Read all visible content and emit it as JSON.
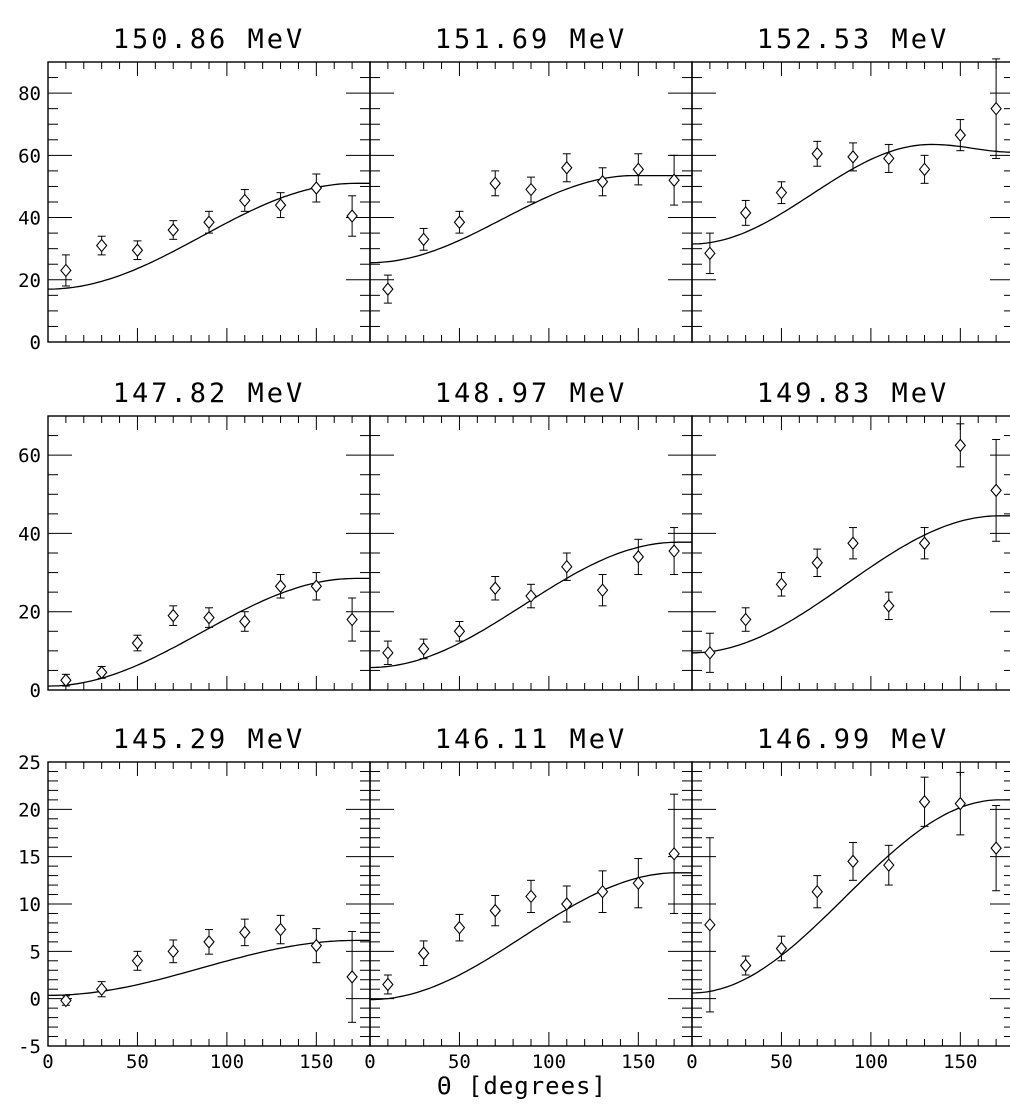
{
  "figure": {
    "xlabel": "Θ [degrees]"
  },
  "chart_data": [
    {
      "type": "scatter",
      "title": "150.86 MeV",
      "row": 0,
      "col": 0,
      "xlim": [
        0,
        180
      ],
      "ylim": [
        0,
        90
      ],
      "xticks": [
        0,
        50,
        100,
        150
      ],
      "yticks": [
        0,
        20,
        40,
        60,
        80
      ],
      "ytick_labels": true,
      "points": [
        {
          "x": 10,
          "y": 23,
          "err": 5
        },
        {
          "x": 30,
          "y": 31,
          "err": 3
        },
        {
          "x": 50,
          "y": 29.5,
          "err": 3
        },
        {
          "x": 70,
          "y": 36,
          "err": 3
        },
        {
          "x": 90,
          "y": 38.5,
          "err": 3.5
        },
        {
          "x": 110,
          "y": 45.5,
          "err": 3.5
        },
        {
          "x": 130,
          "y": 44,
          "err": 4
        },
        {
          "x": 150,
          "y": 49.5,
          "err": 4.5
        },
        {
          "x": 170,
          "y": 40.5,
          "err": 6.5
        }
      ],
      "curve": {
        "mid": 34,
        "amp": 17,
        "peak": 172
      }
    },
    {
      "type": "scatter",
      "title": "151.69 MeV",
      "row": 0,
      "col": 1,
      "xlim": [
        0,
        180
      ],
      "ylim": [
        0,
        90
      ],
      "xticks": [
        0,
        50,
        100,
        150
      ],
      "yticks": [
        0,
        20,
        40,
        60,
        80
      ],
      "ytick_labels": false,
      "points": [
        {
          "x": 10,
          "y": 17,
          "err": 4.5
        },
        {
          "x": 30,
          "y": 33,
          "err": 3.5
        },
        {
          "x": 50,
          "y": 38.5,
          "err": 3.5
        },
        {
          "x": 70,
          "y": 51,
          "err": 4
        },
        {
          "x": 90,
          "y": 49,
          "err": 4
        },
        {
          "x": 110,
          "y": 56,
          "err": 4.5
        },
        {
          "x": 130,
          "y": 51.5,
          "err": 4.5
        },
        {
          "x": 150,
          "y": 55.5,
          "err": 5
        },
        {
          "x": 170,
          "y": 52,
          "err": 8
        }
      ],
      "curve": {
        "mid": 39.5,
        "amp": 14,
        "peak": 148
      }
    },
    {
      "type": "scatter",
      "title": "152.53 MeV",
      "row": 0,
      "col": 2,
      "xlim": [
        0,
        180
      ],
      "ylim": [
        0,
        90
      ],
      "xticks": [
        0,
        50,
        100,
        150
      ],
      "yticks": [
        0,
        20,
        40,
        60,
        80
      ],
      "ytick_labels": false,
      "points": [
        {
          "x": 10,
          "y": 28.5,
          "err": 6.5
        },
        {
          "x": 30,
          "y": 41.5,
          "err": 4
        },
        {
          "x": 50,
          "y": 48,
          "err": 3.5
        },
        {
          "x": 70,
          "y": 60.5,
          "err": 4
        },
        {
          "x": 90,
          "y": 59.5,
          "err": 4.5
        },
        {
          "x": 110,
          "y": 59,
          "err": 4.5
        },
        {
          "x": 130,
          "y": 55.5,
          "err": 4.5
        },
        {
          "x": 150,
          "y": 66.5,
          "err": 5
        },
        {
          "x": 170,
          "y": 75,
          "err": 16
        }
      ],
      "curve": {
        "mid": 47.5,
        "amp": 16,
        "peak": 134,
        "end": 61
      }
    },
    {
      "type": "scatter",
      "title": "147.82 MeV",
      "row": 1,
      "col": 0,
      "xlim": [
        0,
        180
      ],
      "ylim": [
        0,
        70
      ],
      "xticks": [
        0,
        50,
        100,
        150
      ],
      "yticks": [
        0,
        20,
        40,
        60
      ],
      "ytick_labels": true,
      "points": [
        {
          "x": 10,
          "y": 2.5,
          "err": 1.5
        },
        {
          "x": 30,
          "y": 4.5,
          "err": 1.5
        },
        {
          "x": 50,
          "y": 12,
          "err": 2
        },
        {
          "x": 70,
          "y": 19,
          "err": 2.5
        },
        {
          "x": 90,
          "y": 18.5,
          "err": 2.5
        },
        {
          "x": 110,
          "y": 17.5,
          "err": 2.5
        },
        {
          "x": 130,
          "y": 26.5,
          "err": 3
        },
        {
          "x": 150,
          "y": 26.5,
          "err": 3.5
        },
        {
          "x": 170,
          "y": 18,
          "err": 5.5
        }
      ],
      "curve": {
        "mid": 14.75,
        "amp": 13.75,
        "peak": 172
      }
    },
    {
      "type": "scatter",
      "title": "148.97 MeV",
      "row": 1,
      "col": 1,
      "xlim": [
        0,
        180
      ],
      "ylim": [
        0,
        70
      ],
      "xticks": [
        0,
        50,
        100,
        150
      ],
      "yticks": [
        0,
        20,
        40,
        60
      ],
      "ytick_labels": false,
      "points": [
        {
          "x": 10,
          "y": 9.5,
          "err": 3
        },
        {
          "x": 30,
          "y": 10.5,
          "err": 2.5
        },
        {
          "x": 50,
          "y": 15,
          "err": 2.5
        },
        {
          "x": 70,
          "y": 26,
          "err": 3
        },
        {
          "x": 90,
          "y": 24,
          "err": 3
        },
        {
          "x": 110,
          "y": 31.5,
          "err": 3.5
        },
        {
          "x": 130,
          "y": 25.5,
          "err": 4
        },
        {
          "x": 150,
          "y": 34,
          "err": 4.5
        },
        {
          "x": 170,
          "y": 35.5,
          "err": 6
        }
      ],
      "curve": {
        "mid": 21.75,
        "amp": 16,
        "peak": 172
      }
    },
    {
      "type": "scatter",
      "title": "149.83 MeV",
      "row": 1,
      "col": 2,
      "xlim": [
        0,
        180
      ],
      "ylim": [
        0,
        70
      ],
      "xticks": [
        0,
        50,
        100,
        150
      ],
      "yticks": [
        0,
        20,
        40,
        60
      ],
      "ytick_labels": false,
      "points": [
        {
          "x": 10,
          "y": 9.5,
          "err": 5
        },
        {
          "x": 30,
          "y": 18,
          "err": 3
        },
        {
          "x": 50,
          "y": 27,
          "err": 3
        },
        {
          "x": 70,
          "y": 32.5,
          "err": 3.5
        },
        {
          "x": 90,
          "y": 37.5,
          "err": 4
        },
        {
          "x": 110,
          "y": 21.5,
          "err": 3.5
        },
        {
          "x": 130,
          "y": 37.5,
          "err": 4
        },
        {
          "x": 150,
          "y": 62.5,
          "err": 5.5
        },
        {
          "x": 170,
          "y": 51,
          "err": 13
        }
      ],
      "curve": {
        "mid": 27,
        "amp": 17.5,
        "peak": 172
      }
    },
    {
      "type": "scatter",
      "title": "145.29 MeV",
      "row": 2,
      "col": 0,
      "xlim": [
        0,
        180
      ],
      "ylim": [
        -5,
        25
      ],
      "xticks": [
        0,
        50,
        100,
        150
      ],
      "yticks": [
        -5,
        0,
        5,
        10,
        15,
        20,
        25
      ],
      "ytick_labels": true,
      "points": [
        {
          "x": 10,
          "y": -0.2,
          "err": 0.5
        },
        {
          "x": 30,
          "y": 1,
          "err": 0.8
        },
        {
          "x": 50,
          "y": 4,
          "err": 1
        },
        {
          "x": 70,
          "y": 5,
          "err": 1.2
        },
        {
          "x": 90,
          "y": 6,
          "err": 1.3
        },
        {
          "x": 110,
          "y": 7,
          "err": 1.4
        },
        {
          "x": 130,
          "y": 7.3,
          "err": 1.5
        },
        {
          "x": 150,
          "y": 5.6,
          "err": 1.8
        },
        {
          "x": 170,
          "y": 2.3,
          "err": 4.8
        }
      ],
      "curve": {
        "mid": 3.25,
        "amp": 2.9,
        "peak": 172
      }
    },
    {
      "type": "scatter",
      "title": "146.11 MeV",
      "row": 2,
      "col": 1,
      "xlim": [
        0,
        180
      ],
      "ylim": [
        -5,
        25
      ],
      "xticks": [
        0,
        50,
        100,
        150
      ],
      "yticks": [
        -5,
        0,
        5,
        10,
        15,
        20,
        25
      ],
      "ytick_labels": false,
      "points": [
        {
          "x": 10,
          "y": 1.5,
          "err": 1
        },
        {
          "x": 30,
          "y": 4.8,
          "err": 1.3
        },
        {
          "x": 50,
          "y": 7.5,
          "err": 1.4
        },
        {
          "x": 70,
          "y": 9.3,
          "err": 1.6
        },
        {
          "x": 90,
          "y": 10.8,
          "err": 1.7
        },
        {
          "x": 110,
          "y": 10,
          "err": 1.9
        },
        {
          "x": 130,
          "y": 11.3,
          "err": 2.2
        },
        {
          "x": 150,
          "y": 12.2,
          "err": 2.6
        },
        {
          "x": 170,
          "y": 15.3,
          "err": 6.3
        }
      ],
      "curve": {
        "mid": 6.6,
        "amp": 6.7,
        "peak": 172
      }
    },
    {
      "type": "scatter",
      "title": "146.99 MeV",
      "row": 2,
      "col": 2,
      "xlim": [
        0,
        180
      ],
      "ylim": [
        -5,
        25
      ],
      "xticks": [
        0,
        50,
        100,
        150
      ],
      "yticks": [
        -5,
        0,
        5,
        10,
        15,
        20,
        25
      ],
      "ytick_labels": false,
      "points": [
        {
          "x": 10,
          "y": 7.8,
          "err": 9.2
        },
        {
          "x": 30,
          "y": 3.5,
          "err": 1
        },
        {
          "x": 50,
          "y": 5.3,
          "err": 1.3
        },
        {
          "x": 70,
          "y": 11.3,
          "err": 1.7
        },
        {
          "x": 90,
          "y": 14.5,
          "err": 2
        },
        {
          "x": 110,
          "y": 14.1,
          "err": 2.1
        },
        {
          "x": 130,
          "y": 20.8,
          "err": 2.6
        },
        {
          "x": 150,
          "y": 20.6,
          "err": 3.3
        },
        {
          "x": 170,
          "y": 15.9,
          "err": 4.5
        }
      ],
      "curve": {
        "mid": 10.8,
        "amp": 10.2,
        "peak": 172
      }
    }
  ]
}
